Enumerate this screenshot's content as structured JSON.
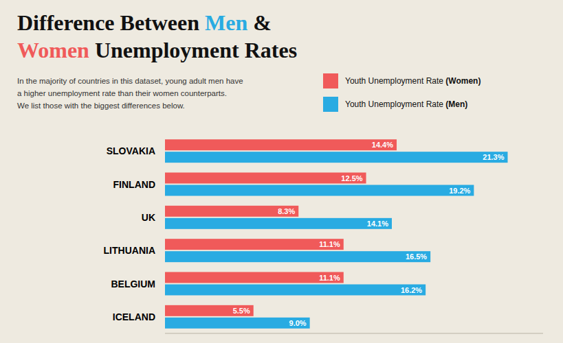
{
  "chart_data": {
    "type": "bar",
    "orientation": "horizontal",
    "title": "Difference Between Men &\nWomen Unemployment Rates",
    "subtitle": "In the majority of countries in this dataset, young adult men have\na higher unemployment rate than their women counterparts.\nWe list those with the biggest differences below.",
    "categories": [
      "SLOVAKIA",
      "FINLAND",
      "UK",
      "LITHUANIA",
      "BELGIUM",
      "ICELAND"
    ],
    "series": [
      {
        "name": "Youth Unemployment Rate (Women)",
        "color": "#F05A5A",
        "values": [
          14.4,
          12.5,
          8.3,
          11.1,
          11.1,
          5.5
        ],
        "value_labels": [
          "14.4%",
          "12.5%",
          "8.3%",
          "11.1%",
          "11.1%",
          "5.5%"
        ]
      },
      {
        "name": "Youth Unemployment Rate (Men)",
        "color": "#29ABE2",
        "values": [
          21.3,
          19.2,
          14.1,
          16.5,
          16.2,
          9.0
        ],
        "value_labels": [
          "21.3%",
          "19.2%",
          "14.1%",
          "16.5%",
          "16.2%",
          "9.0%"
        ]
      }
    ],
    "xlim": [
      0,
      23.5
    ],
    "data_labels": true,
    "tick_labels": false,
    "grid": false,
    "legend": "top right"
  }
}
